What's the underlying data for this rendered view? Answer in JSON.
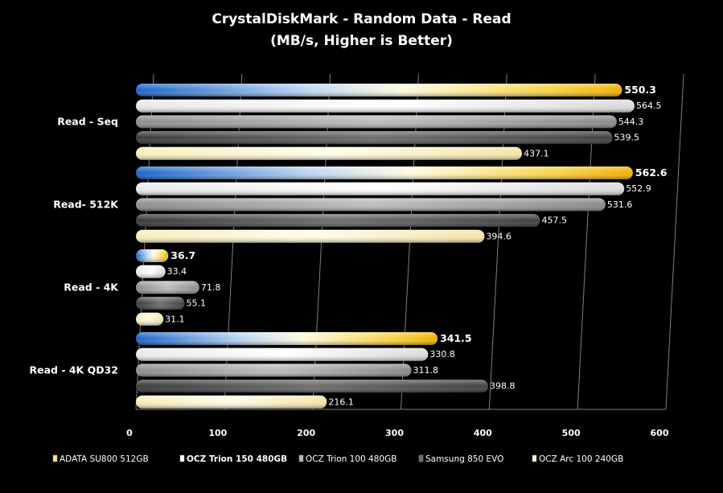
{
  "chart_data": {
    "type": "bar",
    "orientation": "horizontal",
    "title": "CrystalDiskMark  - Random Data - Read",
    "subtitle": "(MB/s, Higher is Better)",
    "categories": [
      "Read - Seq",
      "Read- 512K",
      "Read - 4K",
      "Read - 4K QD32"
    ],
    "series": [
      {
        "name": "ADATA SU800 512GB",
        "values": [
          550.3,
          562.6,
          36.7,
          341.5
        ],
        "color": "#f2b705",
        "highlight": true
      },
      {
        "name": "OCZ Trion 150 480GB",
        "values": [
          564.5,
          552.9,
          33.4,
          330.8
        ],
        "color": "#ffffff"
      },
      {
        "name": "OCZ Trion 100 480GB",
        "values": [
          544.3,
          531.6,
          71.8,
          311.8
        ],
        "color": "#a6a6a6"
      },
      {
        "name": "Samsung 850 EVO",
        "values": [
          539.5,
          457.5,
          55.1,
          398.8
        ],
        "color": "#555555"
      },
      {
        "name": "OCZ Arc 100 240GB",
        "values": [
          437.1,
          394.6,
          31.1,
          216.1
        ],
        "color": "#fff3c4"
      }
    ],
    "xlim": [
      0,
      600
    ],
    "xticks": [
      0,
      100,
      200,
      300,
      400,
      500,
      600
    ],
    "grid": true,
    "legend_position": "bottom"
  }
}
